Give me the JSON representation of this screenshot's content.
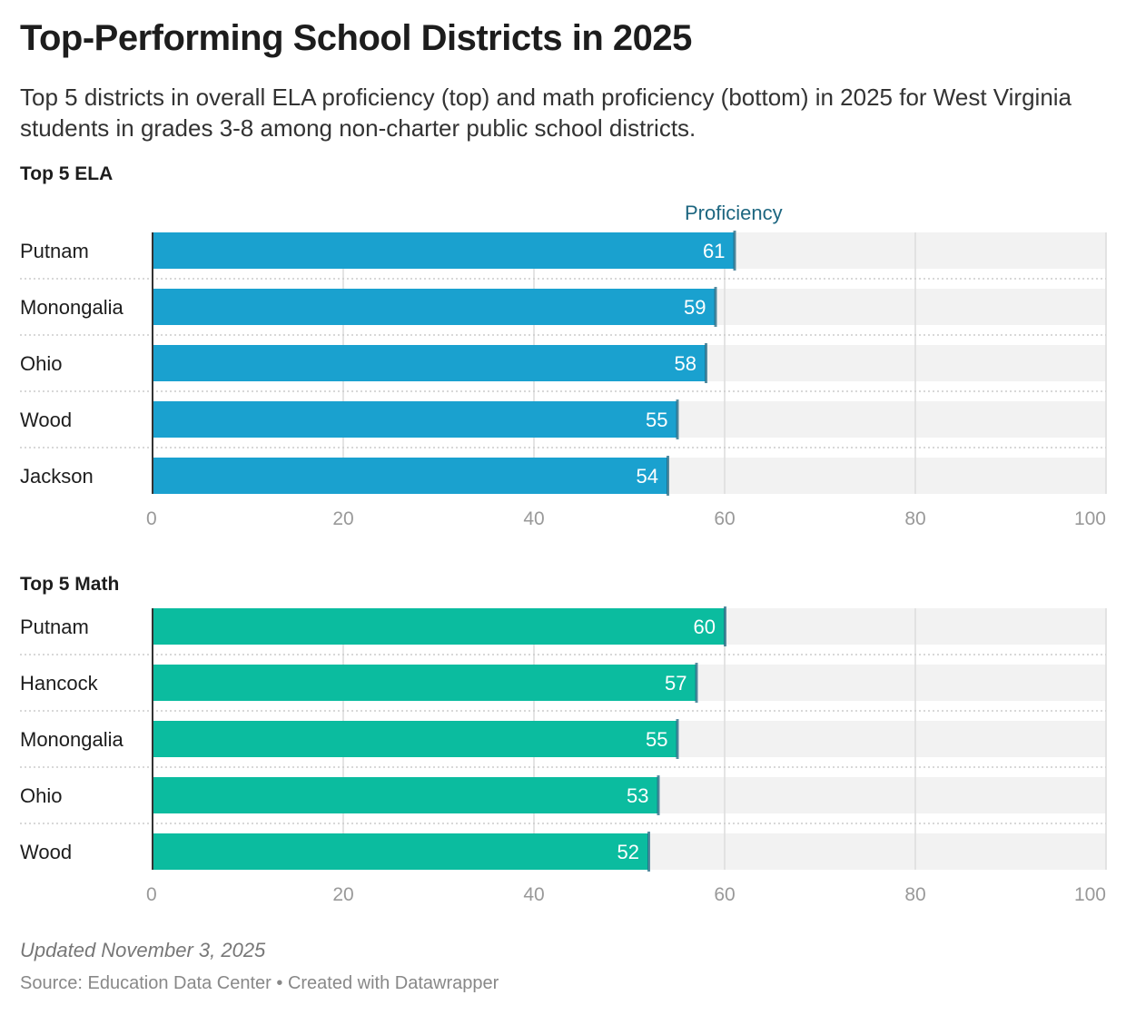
{
  "title": "Top-Performing School Districts in 2025",
  "subtitle": "Top 5 districts in overall ELA proficiency (top) and math proficiency (bottom) in 2025 for West Virginia students in grades 3-8 among non-charter public school districts.",
  "footer": {
    "updated": "Updated November 3, 2025",
    "source": "Source: Education Data Center • Created with Datawrapper"
  },
  "chart_data": [
    {
      "type": "bar",
      "title": "Top 5 ELA",
      "legend": "Proficiency",
      "color": "#1aa1cf",
      "marker_color": "#1d6680",
      "categories": [
        "Putnam",
        "Monongalia",
        "Ohio",
        "Wood",
        "Jackson"
      ],
      "values": [
        61,
        59,
        58,
        55,
        54
      ],
      "xlim": [
        0,
        100
      ],
      "ticks": [
        "0",
        "20",
        "40",
        "60",
        "80",
        "100"
      ]
    },
    {
      "type": "bar",
      "title": "Top 5 Math",
      "color": "#0bbc9f",
      "marker_color": "#1d6680",
      "categories": [
        "Putnam",
        "Hancock",
        "Monongalia",
        "Ohio",
        "Wood"
      ],
      "values": [
        60,
        57,
        55,
        53,
        52
      ],
      "xlim": [
        0,
        100
      ],
      "ticks": [
        "0",
        "20",
        "40",
        "60",
        "80",
        "100"
      ]
    }
  ]
}
